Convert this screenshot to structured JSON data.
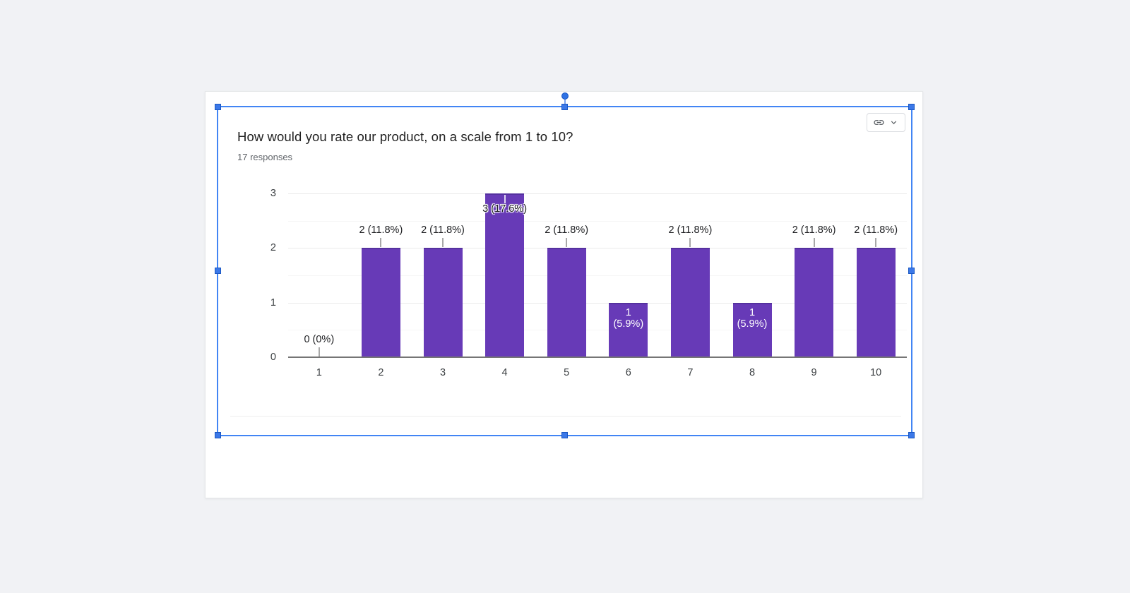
{
  "app": {
    "background": "#f1f2f5"
  },
  "chart_data": {
    "type": "bar",
    "title": "How would you rate our product, on a scale from 1 to 10?",
    "subtitle_responses": "17 responses",
    "total_responses": 17,
    "categories": [
      "1",
      "2",
      "3",
      "4",
      "5",
      "6",
      "7",
      "8",
      "9",
      "10"
    ],
    "values": [
      0,
      2,
      2,
      3,
      2,
      1,
      2,
      1,
      2,
      2
    ],
    "bar_labels": [
      "0 (0%)",
      "2 (11.8%)",
      "2 (11.8%)",
      "3 (17.6%)",
      "2 (11.8%)",
      "1 (5.9%)",
      "2 (11.8%)",
      "1 (5.9%)",
      "2 (11.8%)",
      "2 (11.8%)"
    ],
    "label_placement": [
      "outside-base",
      "outside",
      "outside",
      "overlap-halo",
      "outside",
      "inside-white",
      "outside",
      "inside-white",
      "outside",
      "outside"
    ],
    "yticks": [
      "0",
      "1",
      "2",
      "3"
    ],
    "ylim": [
      0,
      3
    ],
    "xlabel": "",
    "ylabel": "",
    "grid": true,
    "legend": false,
    "bar_color": "#673ab7",
    "axis_line_color": "#757575",
    "gridline_color": "#eaeaea",
    "minor_gridline_color": "#f6f6f6"
  },
  "linked_chart_toolbar": {
    "icons": [
      "link-icon",
      "chevron-down-icon"
    ]
  },
  "selection": {
    "border_color": "#4285f4",
    "handle_fill": "#3b78e8"
  }
}
